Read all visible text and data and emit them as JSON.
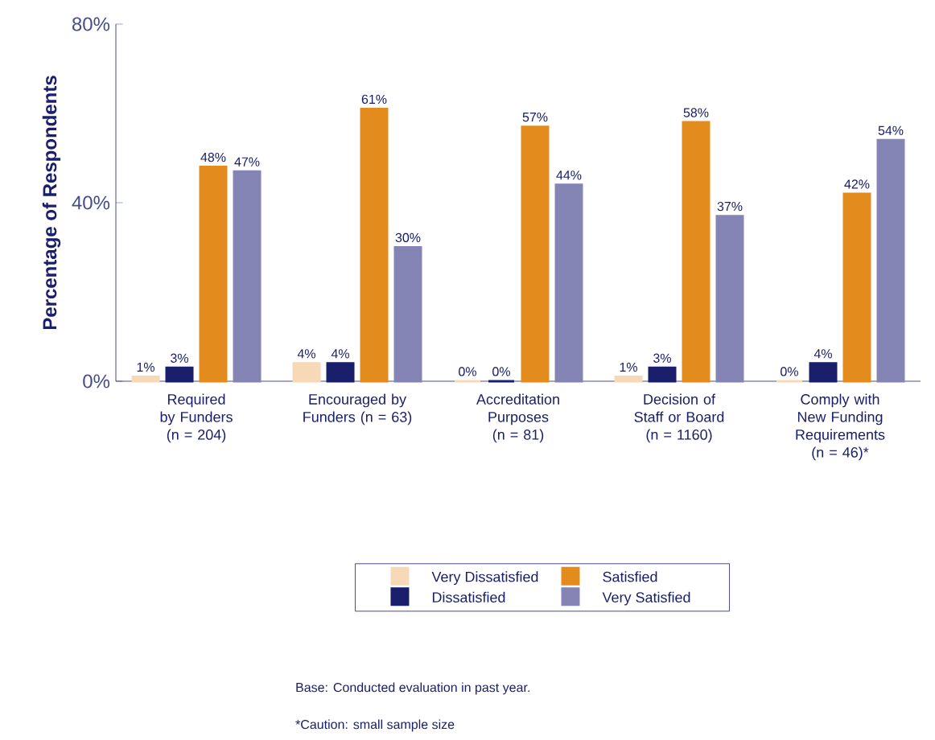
{
  "chart_data": {
    "type": "bar",
    "ylabel": "Percentage of Respondents",
    "categories": [
      "Required by Funders (n = 204)",
      "Encouraged by Funders (n = 63)",
      "Accreditation Purposes (n = 81)",
      "Decision of Staff or Board (n = 1160)",
      "Comply with New Funding Requirements (n = 46)*"
    ],
    "series": [
      {
        "name": "Very Dissatisfied",
        "color": "#f7d9b8",
        "values": [
          1,
          4,
          0,
          1,
          0
        ],
        "value_labels": [
          "1%",
          "4%",
          "0%",
          "1%",
          "0%"
        ]
      },
      {
        "name": "Dissatisfied",
        "color": "#1a1f6b",
        "values": [
          3,
          4,
          0,
          3,
          4
        ],
        "value_labels": [
          "3%",
          "4%",
          "0%",
          "3%",
          "4%"
        ]
      },
      {
        "name": "Satisfied",
        "color": "#e38b1c",
        "values": [
          48,
          61,
          57,
          58,
          42
        ],
        "value_labels": [
          "48%",
          "61%",
          "57%",
          "58%",
          "42%"
        ]
      },
      {
        "name": "Very Satisfied",
        "color": "#8585b5",
        "values": [
          47,
          30,
          44,
          37,
          54
        ],
        "value_labels": [
          "47%",
          "30%",
          "44%",
          "37%",
          "54%"
        ]
      }
    ],
    "ylim": [
      0,
      80
    ],
    "yticks": [
      {
        "value": 0,
        "label": "0%"
      },
      {
        "value": 40,
        "label": "40%"
      },
      {
        "value": 80,
        "label": "80%"
      }
    ],
    "legend": "bottom",
    "annotations": [
      "Base: Conducted evaluation in past year.",
      "*Caution: small sample size"
    ]
  }
}
